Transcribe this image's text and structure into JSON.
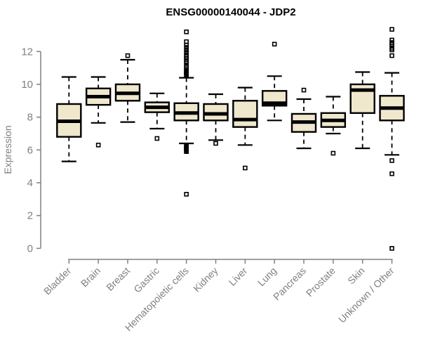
{
  "title": "ENSG00000140044 - JDP2",
  "chart_data": {
    "type": "boxplot",
    "title": "ENSG00000140044 - JDP2",
    "xlabel": "",
    "ylabel": "Expression",
    "ylim": [
      0,
      13.5
    ],
    "yticks": [
      0,
      2,
      4,
      6,
      8,
      10,
      12
    ],
    "grid": false,
    "legend": "none",
    "box_fill_color": "#efe8cd",
    "box_stroke_color": "#000000",
    "axis_color": "#808080",
    "tick_label_color": "#808080",
    "title_color": "#000000",
    "categories": [
      "Bladder",
      "Brain",
      "Breast",
      "Gastric",
      "Hematopoietic cells",
      "Kidney",
      "Liver",
      "Lung",
      "Pancreas",
      "Prostate",
      "Skin",
      "Unknown / Other"
    ],
    "boxes": [
      {
        "category": "Bladder",
        "low": 5.3,
        "q1": 6.8,
        "median": 7.75,
        "q3": 8.8,
        "high": 10.45,
        "outliers": []
      },
      {
        "category": "Brain",
        "low": 7.65,
        "q1": 8.75,
        "median": 9.25,
        "q3": 9.75,
        "high": 10.45,
        "outliers": [
          6.3
        ]
      },
      {
        "category": "Breast",
        "low": 7.7,
        "q1": 9.0,
        "median": 9.45,
        "q3": 10.0,
        "high": 11.5,
        "outliers": [
          11.75
        ]
      },
      {
        "category": "Gastric",
        "low": 7.3,
        "q1": 8.3,
        "median": 8.6,
        "q3": 8.9,
        "high": 9.45,
        "outliers": [
          6.7
        ]
      },
      {
        "category": "Hematopoietic cells",
        "low": 6.4,
        "q1": 7.8,
        "median": 8.25,
        "q3": 8.85,
        "high": 10.4,
        "outliers": [
          3.3,
          5.9,
          5.95,
          6.0,
          6.05,
          6.1,
          6.15,
          6.2,
          6.25,
          6.3,
          10.55,
          10.6,
          10.65,
          10.7,
          10.75,
          10.8,
          10.85,
          10.95,
          11.05,
          11.15,
          11.3,
          11.4,
          11.5,
          11.6,
          11.7,
          11.8,
          11.95,
          12.1,
          12.25,
          12.4,
          12.6,
          13.2
        ]
      },
      {
        "category": "Kidney",
        "low": 6.6,
        "q1": 7.8,
        "median": 8.2,
        "q3": 8.8,
        "high": 9.4,
        "outliers": [
          6.4
        ]
      },
      {
        "category": "Liver",
        "low": 6.3,
        "q1": 7.4,
        "median": 7.85,
        "q3": 9.0,
        "high": 9.8,
        "outliers": [
          4.9
        ]
      },
      {
        "category": "Lung",
        "low": 7.8,
        "q1": 8.7,
        "median": 8.85,
        "q3": 9.6,
        "high": 10.5,
        "outliers": [
          12.45
        ]
      },
      {
        "category": "Pancreas",
        "low": 6.1,
        "q1": 7.1,
        "median": 7.7,
        "q3": 8.2,
        "high": 9.1,
        "outliers": [
          9.65
        ]
      },
      {
        "category": "Prostate",
        "low": 7.0,
        "q1": 7.4,
        "median": 7.8,
        "q3": 8.25,
        "high": 9.25,
        "outliers": [
          5.8
        ]
      },
      {
        "category": "Skin",
        "low": 6.1,
        "q1": 8.25,
        "median": 9.65,
        "q3": 10.0,
        "high": 10.75,
        "outliers": []
      },
      {
        "category": "Unknown / Other",
        "low": 5.7,
        "q1": 7.8,
        "median": 8.55,
        "q3": 9.3,
        "high": 10.7,
        "outliers": [
          0.0,
          4.55,
          5.35,
          11.75,
          12.1,
          12.2,
          12.35,
          12.45,
          12.55,
          12.7,
          13.35
        ]
      }
    ]
  }
}
